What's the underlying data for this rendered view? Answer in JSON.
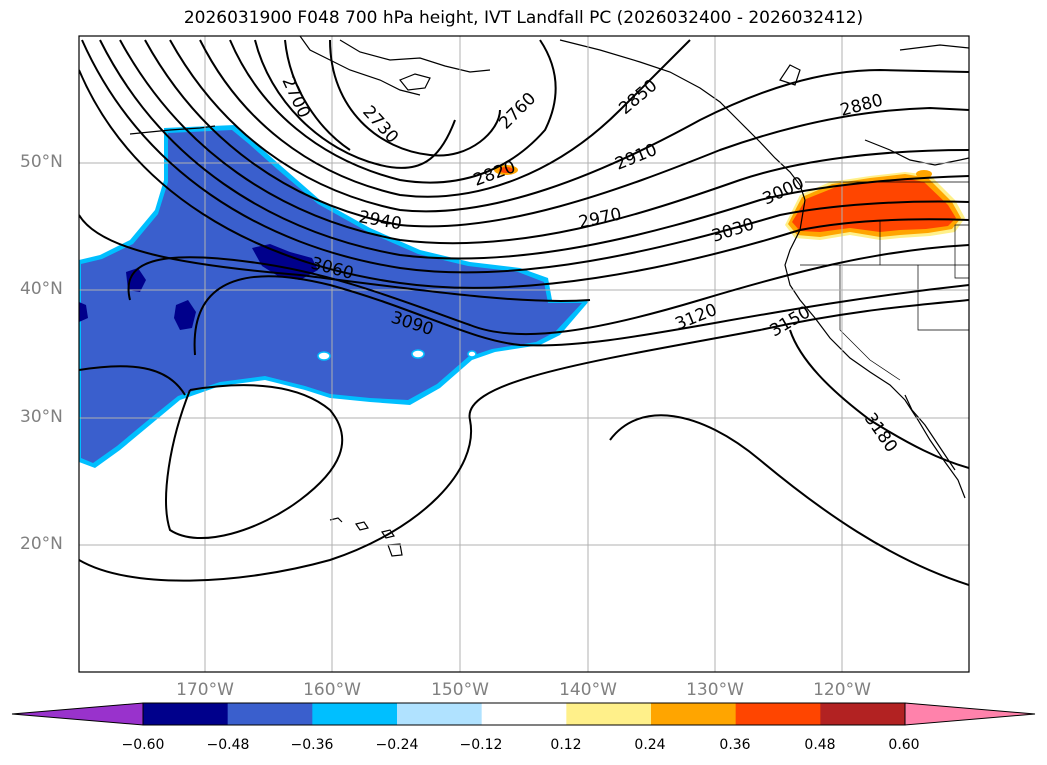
{
  "title": "2026031900 F048 700 hPa height, IVT Landfall PC (2026032400 - 2026032412)",
  "map": {
    "lat_labels": [
      "50°N",
      "40°N",
      "30°N",
      "20°N"
    ],
    "lon_labels": [
      "170°W",
      "160°W",
      "150°W",
      "140°W",
      "130°W",
      "120°W"
    ],
    "contour_labels": [
      "2700",
      "2730",
      "2760",
      "2820",
      "2850",
      "2880",
      "2910",
      "2940",
      "2970",
      "3000",
      "3030",
      "3060",
      "3090",
      "3120",
      "3150",
      "3180"
    ],
    "contour_interval": 30,
    "fill_colors": {
      "negative_strong": "#00008b",
      "negative_medium": "#3a5fcd",
      "negative_edge": "#00bfff",
      "positive_medium": "#ff4500",
      "positive_light": "#ffa500",
      "positive_edge": "#fff08a"
    }
  },
  "colorbar": {
    "ticks": [
      "−0.60",
      "−0.48",
      "−0.36",
      "−0.24",
      "−0.12",
      "0.12",
      "0.24",
      "0.36",
      "0.48",
      "0.60"
    ],
    "colors": [
      "#9932cc",
      "#00008b",
      "#3a5fcd",
      "#00bfff",
      "#b0e2ff",
      "#ffffff",
      "#fff08a",
      "#ffa500",
      "#ff4500",
      "#b22222",
      "#ff82ab"
    ],
    "extend": "both"
  }
}
